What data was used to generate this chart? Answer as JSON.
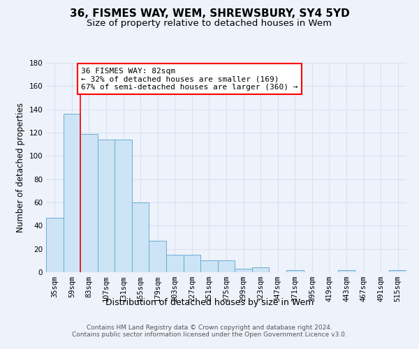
{
  "title": "36, FISMES WAY, WEM, SHREWSBURY, SY4 5YD",
  "subtitle": "Size of property relative to detached houses in Wem",
  "xlabel": "Distribution of detached houses by size in Wem",
  "ylabel": "Number of detached properties",
  "bar_color": "#cce4f5",
  "bar_edge_color": "#6aadd4",
  "background_color": "#eef2fb",
  "grid_color": "#d8e0f0",
  "categories": [
    "35sqm",
    "59sqm",
    "83sqm",
    "107sqm",
    "131sqm",
    "155sqm",
    "179sqm",
    "203sqm",
    "227sqm",
    "251sqm",
    "275sqm",
    "299sqm",
    "323sqm",
    "347sqm",
    "371sqm",
    "395sqm",
    "419sqm",
    "443sqm",
    "467sqm",
    "491sqm",
    "515sqm"
  ],
  "values": [
    47,
    136,
    119,
    114,
    114,
    60,
    27,
    15,
    15,
    10,
    10,
    3,
    4,
    0,
    2,
    0,
    0,
    2,
    0,
    0,
    2
  ],
  "red_line_index": 2,
  "annotation_text": "36 FISMES WAY: 82sqm\n← 32% of detached houses are smaller (169)\n67% of semi-detached houses are larger (360) →",
  "annotation_box_color": "white",
  "annotation_box_edge_color": "red",
  "ylim": [
    0,
    180
  ],
  "yticks": [
    0,
    20,
    40,
    60,
    80,
    100,
    120,
    140,
    160,
    180
  ],
  "footnote": "Contains HM Land Registry data © Crown copyright and database right 2024.\nContains public sector information licensed under the Open Government Licence v3.0.",
  "title_fontsize": 11,
  "subtitle_fontsize": 9.5,
  "xlabel_fontsize": 9,
  "ylabel_fontsize": 8.5,
  "tick_fontsize": 7.5,
  "annotation_fontsize": 8,
  "footnote_fontsize": 6.5
}
